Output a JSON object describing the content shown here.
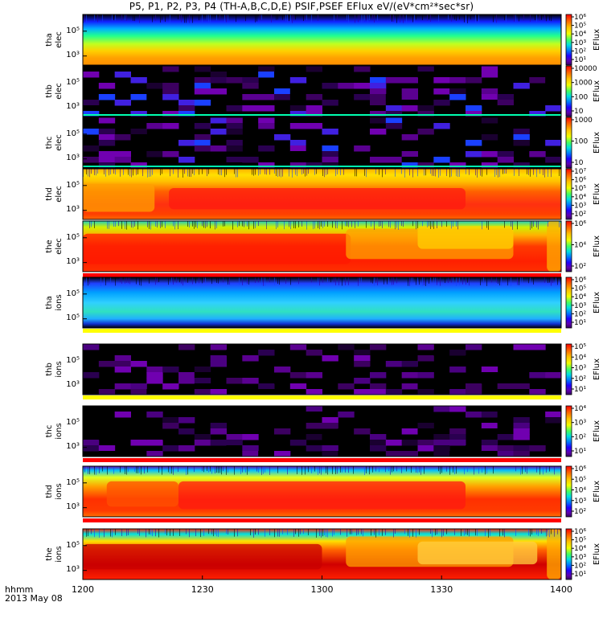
{
  "title": "P5, P1, P2, P3, P4 (TH-A,B,C,D,E) PSIF,PSEF EFlux eV/(eV*cm²*sec*sr)",
  "footer": {
    "label_line1": "hhmm",
    "label_line2": "2013 May 08"
  },
  "chart_data": {
    "type": "heatmap",
    "x_ticks": [
      "1200",
      "1230",
      "1300",
      "1330",
      "1400"
    ],
    "x_range": [
      "12:00",
      "14:00"
    ],
    "colorbar_label": "EFlux",
    "panels": [
      {
        "id": "tha-elec",
        "ylabel_line1": "tha",
        "ylabel_line2": "elec",
        "y_ticks": [
          "10⁵",
          "10³"
        ],
        "cbar_ticks": [
          "10⁶",
          "10⁵",
          "10⁴",
          "10³",
          "10²",
          "10¹"
        ],
        "mode": "smooth",
        "style": "tha_e",
        "red_bar": false
      },
      {
        "id": "thb-elec",
        "ylabel_line1": "thb",
        "ylabel_line2": "elec",
        "y_ticks": [
          "10⁵",
          "10³"
        ],
        "cbar_ticks": [
          "10000",
          "1000",
          "100",
          "10"
        ],
        "mode": "sparse",
        "style": "sparse_e",
        "red_bar": false
      },
      {
        "id": "thc-elec",
        "ylabel_line1": "thc",
        "ylabel_line2": "elec",
        "y_ticks": [
          "10⁵",
          "10³"
        ],
        "cbar_ticks": [
          "1000",
          "100",
          "10"
        ],
        "mode": "sparse",
        "style": "sparse_e2",
        "red_bar": false
      },
      {
        "id": "thd-elec",
        "ylabel_line1": "thd",
        "ylabel_line2": "elec",
        "y_ticks": [
          "10⁵",
          "10³"
        ],
        "cbar_ticks": [
          "10⁷",
          "10⁶",
          "10⁵",
          "10⁴",
          "10³",
          "10²"
        ],
        "mode": "smooth",
        "style": "thd_e",
        "red_bar": false
      },
      {
        "id": "the-elec",
        "ylabel_line1": "the",
        "ylabel_line2": "elec",
        "y_ticks": [
          "10⁵",
          "10³"
        ],
        "cbar_ticks": [
          "10⁶",
          "10⁴",
          "10²"
        ],
        "mode": "smooth",
        "style": "the_e",
        "red_bar": true
      },
      {
        "id": "tha-ions",
        "ylabel_line1": "tha",
        "ylabel_line2": "ions",
        "y_ticks": [
          "10⁵",
          "10⁵"
        ],
        "cbar_ticks": [
          "10⁶",
          "10⁵",
          "10⁴",
          "10³",
          "10²",
          "10¹"
        ],
        "mode": "smooth",
        "style": "tha_i",
        "red_bar": false,
        "yellow_bar": true
      },
      {
        "id": "thb-ions",
        "ylabel_line1": "thb",
        "ylabel_line2": "ions",
        "y_ticks": [
          "10⁵",
          "10³"
        ],
        "cbar_ticks": [
          "10⁵",
          "10⁴",
          "10³",
          "10²",
          "10¹"
        ],
        "mode": "sparse",
        "style": "sparse_i",
        "red_bar": false,
        "yellow_bar": true
      },
      {
        "id": "thc-ions",
        "ylabel_line1": "thc",
        "ylabel_line2": "ions",
        "y_ticks": [
          "10⁵",
          "10³"
        ],
        "cbar_ticks": [
          "10⁴",
          "10³",
          "10²",
          "10¹"
        ],
        "mode": "sparse",
        "style": "sparse_i2",
        "red_bar": true
      },
      {
        "id": "thd-ions",
        "ylabel_line1": "thd",
        "ylabel_line2": "ions",
        "y_ticks": [
          "10⁵",
          "10³"
        ],
        "cbar_ticks": [
          "10⁶",
          "10⁵",
          "10⁴",
          "10³",
          "10²"
        ],
        "mode": "smooth",
        "style": "thd_i",
        "red_bar": true
      },
      {
        "id": "the-ions",
        "ylabel_line1": "the",
        "ylabel_line2": "ions",
        "y_ticks": [
          "10⁵",
          "10³"
        ],
        "cbar_ticks": [
          "10⁶",
          "10⁵",
          "10⁴",
          "10³",
          "10²",
          "10¹"
        ],
        "mode": "smooth",
        "style": "the_i",
        "red_bar": false
      }
    ]
  }
}
